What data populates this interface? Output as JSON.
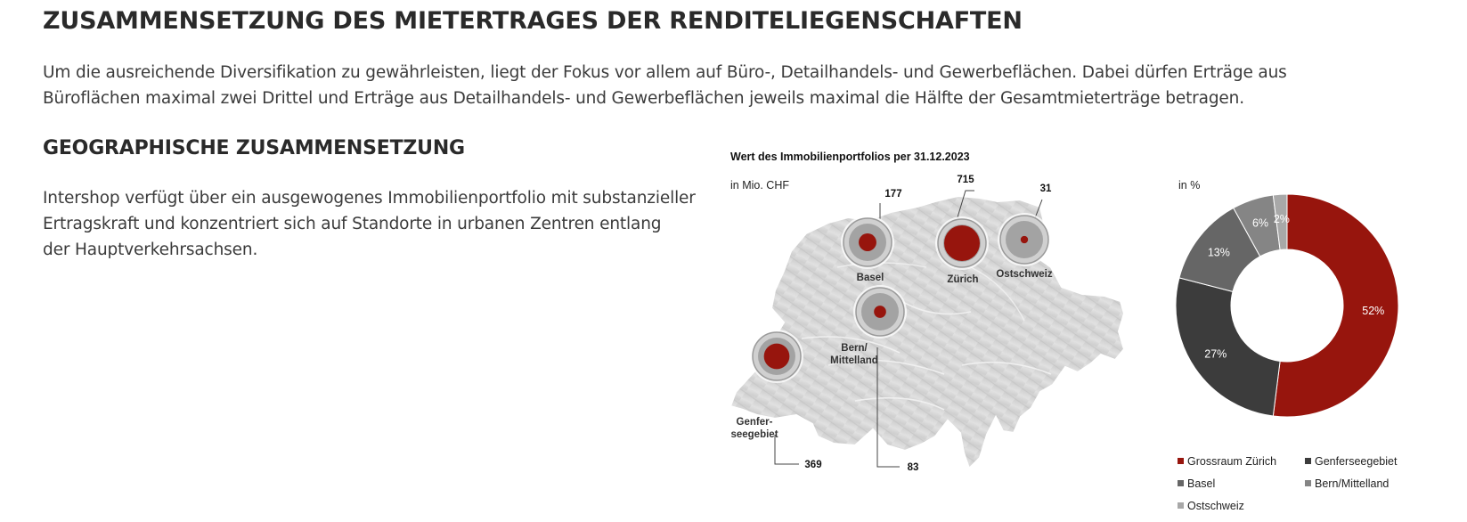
{
  "heading": "ZUSAMMENSETZUNG DES MIETERTRAGES DER RENDITELIEGENSCHAFTEN",
  "intro_line1": "Um die ausreichende Diversifikation zu gewährleisten, liegt der Fokus vor allem auf Büro-, Detailhandels- und Gewerbeflächen. Dabei dürfen Erträge aus",
  "intro_line2": "Büroflächen maximal zwei Drittel und Erträge aus Detailhandels- und Gewerbeflächen jeweils maximal die Hälfte der Gesamtmieterträge betragen.",
  "subheading": "GEOGRAPHISCHE ZUSAMMENSETZUNG",
  "geo_line1": "Intershop verfügt über ein ausgewogenes Immobilienportfolio mit substanzieller",
  "geo_line2": "Ertragskraft und konzentriert sich auf Standorte in urbanen Zentren entlang",
  "geo_line3": "der Hauptverkehrsachsen.",
  "figure": {
    "title": "Wert des Immobilienportfolios per 31.12.2023",
    "map_unit": "in Mio. CHF",
    "donut_unit": "in %"
  },
  "colors": {
    "accent_red": "#97150d",
    "dark_grey": "#3c3c3c",
    "mid_grey": "#666666",
    "grey": "#858585",
    "light_grey": "#a8a8a8"
  },
  "chart_data": [
    {
      "type": "bubble-map",
      "unit": "in Mio. CHF",
      "regions": [
        {
          "label": "Zürich",
          "value": 715
        },
        {
          "label": "Genfer-seegebiet",
          "label_line1": "Genfer-",
          "label_line2": "seegebiet",
          "value": 369
        },
        {
          "label": "Basel",
          "value": 177
        },
        {
          "label": "Bern/Mittelland",
          "label_line1": "Bern/",
          "label_line2": "Mittelland",
          "value": 83
        },
        {
          "label": "Ostschweiz",
          "value": 31
        }
      ]
    },
    {
      "type": "pie",
      "unit": "in %",
      "slices": [
        {
          "name": "Grossraum Zürich",
          "value": 52,
          "label": "52%",
          "color": "#97150d"
        },
        {
          "name": "Genferseegebiet",
          "value": 27,
          "label": "27%",
          "color": "#3c3c3c"
        },
        {
          "name": "Basel",
          "value": 13,
          "label": "13%",
          "color": "#666666"
        },
        {
          "name": "Bern/Mittelland",
          "value": 6,
          "label": "6%",
          "color": "#858585"
        },
        {
          "name": "Ostschweiz",
          "value": 2,
          "label": "2%",
          "color": "#a8a8a8"
        }
      ]
    }
  ]
}
